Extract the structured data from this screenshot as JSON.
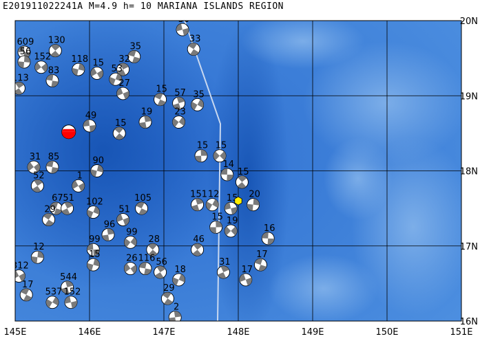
{
  "title": "E201911022241A  M=4.9  h= 10 MARIANA ISLANDS REGION",
  "map": {
    "lon_range": [
      145,
      151
    ],
    "lat_range": [
      16,
      20
    ],
    "lon_ticks": [
      "145E",
      "146E",
      "147E",
      "148E",
      "149E",
      "150E",
      "151E"
    ],
    "lat_ticks": [
      "20N",
      "19N",
      "18N",
      "17N",
      "16N"
    ],
    "colors": {
      "sea_deep": "#1d5fc4",
      "sea_mid": "#3c7fd8",
      "sea_light": "#6aa5e6",
      "trench_line": "#c8d8f0",
      "mechanism_fill": "#7a7a7a",
      "mechanism_bg": "#ffffff",
      "target_event": "#ff0000",
      "epicenter_marker": "#ffee00",
      "grid": "#000000"
    },
    "target_event": {
      "lon": 145.72,
      "lat": 18.52
    },
    "epicenter_marker": {
      "lon": 148.0,
      "lat": 17.6
    },
    "events": [
      {
        "label": "609",
        "lon": 145.12,
        "lat": 19.58
      },
      {
        "label": "130",
        "lon": 145.54,
        "lat": 19.6
      },
      {
        "label": "56",
        "lon": 145.12,
        "lat": 19.45
      },
      {
        "label": "152",
        "lon": 145.35,
        "lat": 19.38
      },
      {
        "label": "83",
        "lon": 145.5,
        "lat": 19.2
      },
      {
        "label": "113",
        "lon": 145.05,
        "lat": 19.1
      },
      {
        "label": "118",
        "lon": 145.85,
        "lat": 19.35
      },
      {
        "label": "15",
        "lon": 146.1,
        "lat": 19.3
      },
      {
        "label": "35",
        "lon": 146.6,
        "lat": 19.52
      },
      {
        "label": "32",
        "lon": 146.45,
        "lat": 19.35
      },
      {
        "label": "53",
        "lon": 146.35,
        "lat": 19.22
      },
      {
        "label": "27",
        "lon": 146.45,
        "lat": 19.03
      },
      {
        "label": "15",
        "lon": 146.95,
        "lat": 18.95
      },
      {
        "label": "57",
        "lon": 147.2,
        "lat": 18.9
      },
      {
        "label": "35",
        "lon": 147.45,
        "lat": 18.88
      },
      {
        "label": "30",
        "lon": 147.25,
        "lat": 19.88
      },
      {
        "label": "33",
        "lon": 147.4,
        "lat": 19.62
      },
      {
        "label": "19",
        "lon": 146.75,
        "lat": 18.65
      },
      {
        "label": "23",
        "lon": 147.2,
        "lat": 18.65
      },
      {
        "label": "49",
        "lon": 146.0,
        "lat": 18.6
      },
      {
        "label": "15",
        "lon": 146.4,
        "lat": 18.5
      },
      {
        "label": "15",
        "lon": 147.5,
        "lat": 18.2
      },
      {
        "label": "15",
        "lon": 147.75,
        "lat": 18.2
      },
      {
        "label": "14",
        "lon": 147.85,
        "lat": 17.95
      },
      {
        "label": "15",
        "lon": 148.05,
        "lat": 17.85
      },
      {
        "label": "20",
        "lon": 148.2,
        "lat": 17.55
      },
      {
        "label": "31",
        "lon": 145.25,
        "lat": 18.05
      },
      {
        "label": "85",
        "lon": 145.5,
        "lat": 18.05
      },
      {
        "label": "52",
        "lon": 145.3,
        "lat": 17.8
      },
      {
        "label": "90",
        "lon": 146.1,
        "lat": 18.0
      },
      {
        "label": "1",
        "lon": 145.85,
        "lat": 17.8
      },
      {
        "label": "67",
        "lon": 145.55,
        "lat": 17.5
      },
      {
        "label": "51",
        "lon": 145.7,
        "lat": 17.5
      },
      {
        "label": "102",
        "lon": 146.05,
        "lat": 17.45
      },
      {
        "label": "51",
        "lon": 146.45,
        "lat": 17.35
      },
      {
        "label": "105",
        "lon": 146.7,
        "lat": 17.5
      },
      {
        "label": "151",
        "lon": 147.45,
        "lat": 17.55
      },
      {
        "label": "12",
        "lon": 147.65,
        "lat": 17.55
      },
      {
        "label": "15",
        "lon": 147.9,
        "lat": 17.5
      },
      {
        "label": "29",
        "lon": 145.45,
        "lat": 17.35
      },
      {
        "label": "96",
        "lon": 146.25,
        "lat": 17.15
      },
      {
        "label": "99",
        "lon": 146.55,
        "lat": 17.05
      },
      {
        "label": "99",
        "lon": 146.05,
        "lat": 16.95
      },
      {
        "label": "28",
        "lon": 146.85,
        "lat": 16.95
      },
      {
        "label": "15",
        "lon": 147.7,
        "lat": 17.25
      },
      {
        "label": "19",
        "lon": 147.9,
        "lat": 17.2
      },
      {
        "label": "16",
        "lon": 148.4,
        "lat": 17.1
      },
      {
        "label": "46",
        "lon": 147.45,
        "lat": 16.95
      },
      {
        "label": "12",
        "lon": 145.3,
        "lat": 16.85
      },
      {
        "label": "26",
        "lon": 146.55,
        "lat": 16.7
      },
      {
        "label": "116",
        "lon": 146.75,
        "lat": 16.7
      },
      {
        "label": "56",
        "lon": 146.95,
        "lat": 16.65
      },
      {
        "label": "15",
        "lon": 146.05,
        "lat": 16.75
      },
      {
        "label": "312",
        "lon": 145.05,
        "lat": 16.6
      },
      {
        "label": "17",
        "lon": 148.3,
        "lat": 16.75
      },
      {
        "label": "31",
        "lon": 147.8,
        "lat": 16.65
      },
      {
        "label": "18",
        "lon": 147.2,
        "lat": 16.55
      },
      {
        "label": "17",
        "lon": 148.1,
        "lat": 16.55
      },
      {
        "label": "17",
        "lon": 145.15,
        "lat": 16.35
      },
      {
        "label": "544",
        "lon": 145.7,
        "lat": 16.45
      },
      {
        "label": "537",
        "lon": 145.5,
        "lat": 16.25
      },
      {
        "label": "152",
        "lon": 145.75,
        "lat": 16.25
      },
      {
        "label": "29",
        "lon": 147.05,
        "lat": 16.3
      },
      {
        "label": "2",
        "lon": 147.15,
        "lat": 16.05
      }
    ]
  }
}
